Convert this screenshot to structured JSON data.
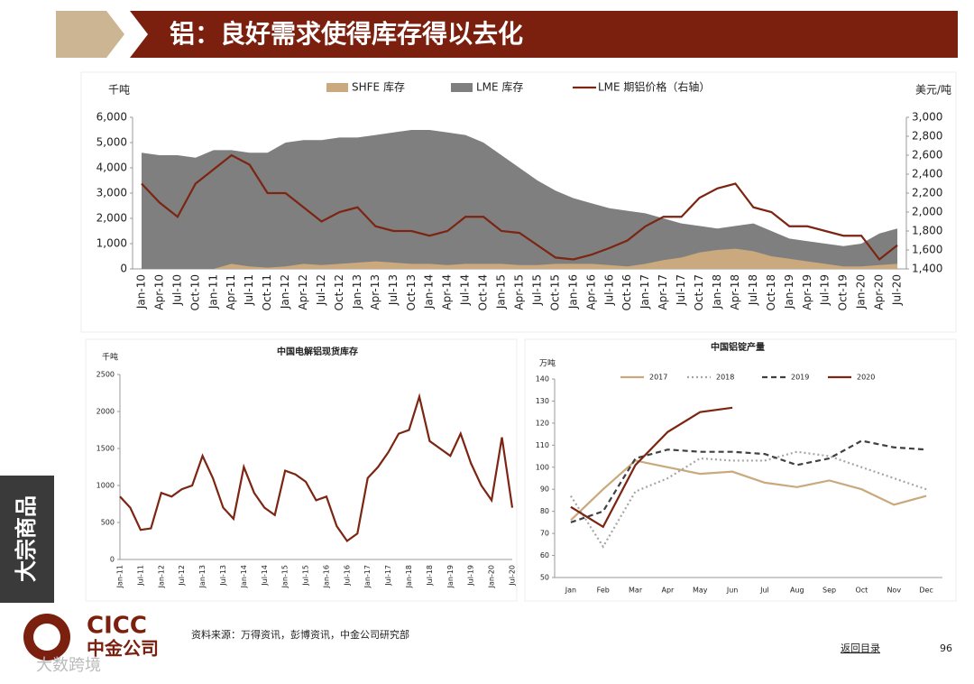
{
  "header": {
    "title": "铝：良好需求使得库存得以去化"
  },
  "sidebar": {
    "label": "大宗商品"
  },
  "logo": {
    "en": "CICC",
    "cn": "中金公司"
  },
  "footer": {
    "source": "资料来源：万得资讯，彭博资讯，中金公司研究部",
    "link": "返回目录",
    "page": "96",
    "watermark": "大数跨境"
  },
  "chart_data": [
    {
      "type": "area",
      "y_label": "千吨",
      "y2_label": "美元/吨",
      "categories": [
        "Jan-10",
        "Apr-10",
        "Jul-10",
        "Oct-10",
        "Jan-11",
        "Apr-11",
        "Jul-11",
        "Oct-11",
        "Jan-12",
        "Apr-12",
        "Jul-12",
        "Oct-12",
        "Jan-13",
        "Apr-13",
        "Jul-13",
        "Oct-13",
        "Jan-14",
        "Apr-14",
        "Jul-14",
        "Oct-14",
        "Jan-15",
        "Apr-15",
        "Jul-15",
        "Oct-15",
        "Jan-16",
        "Apr-16",
        "Jul-16",
        "Oct-16",
        "Jan-17",
        "Apr-17",
        "Jul-17",
        "Oct-17",
        "Jan-18",
        "Apr-18",
        "Jul-18",
        "Oct-18",
        "Jan-19",
        "Apr-19",
        "Jul-19",
        "Oct-19",
        "Jan-20",
        "Apr-20",
        "Jul-20"
      ],
      "series": [
        {
          "name": "SHFE 库存",
          "type": "area",
          "color": "#c9a97d",
          "values": [
            0,
            0,
            0,
            0,
            0,
            200,
            100,
            50,
            100,
            200,
            150,
            200,
            250,
            300,
            250,
            200,
            200,
            150,
            200,
            200,
            200,
            150,
            150,
            200,
            200,
            200,
            150,
            100,
            200,
            350,
            450,
            650,
            750,
            800,
            700,
            500,
            400,
            300,
            200,
            100,
            100,
            150,
            200
          ]
        },
        {
          "name": "LME 库存",
          "type": "area",
          "color": "#7f7f7f",
          "values": [
            4600,
            4500,
            4500,
            4400,
            4700,
            4700,
            4600,
            4600,
            5000,
            5100,
            5100,
            5200,
            5200,
            5300,
            5400,
            5500,
            5500,
            5400,
            5300,
            5000,
            4500,
            4000,
            3500,
            3100,
            2800,
            2600,
            2400,
            2300,
            2200,
            2000,
            1800,
            1700,
            1600,
            1700,
            1800,
            1500,
            1200,
            1100,
            1000,
            900,
            1000,
            1400,
            1600
          ]
        },
        {
          "name": "LME 期铝价格（右轴）",
          "type": "line",
          "axis": "y2",
          "color": "#7b2512",
          "values": [
            2300,
            2100,
            1950,
            2300,
            2450,
            2600,
            2500,
            2200,
            2200,
            2050,
            1900,
            2000,
            2050,
            1850,
            1800,
            1800,
            1750,
            1800,
            1950,
            1950,
            1800,
            1780,
            1650,
            1520,
            1500,
            1550,
            1620,
            1700,
            1850,
            1950,
            1950,
            2150,
            2250,
            2300,
            2050,
            2000,
            1850,
            1850,
            1800,
            1750,
            1750,
            1500,
            1650
          ]
        }
      ],
      "ylim": [
        0,
        6000
      ],
      "yticks": [
        0,
        {
          "value": 1000,
          "label": "1,000"
        },
        {
          "value": 2000,
          "label": "2,000"
        },
        {
          "value": 3000,
          "label": "3,000"
        },
        {
          "value": 4000,
          "label": "4,000"
        },
        {
          "value": 5000,
          "label": "5,000"
        },
        {
          "value": 6000,
          "label": "6,000"
        }
      ],
      "y2lim": [
        1400,
        3000
      ],
      "y2ticks": [
        {
          "value": 1400,
          "label": "1,400"
        },
        {
          "value": 1600,
          "label": "1,600"
        },
        {
          "value": 1800,
          "label": "1,800"
        },
        {
          "value": 2000,
          "label": "2,000"
        },
        {
          "value": 2200,
          "label": "2,200"
        },
        {
          "value": 2400,
          "label": "2,400"
        },
        {
          "value": 2600,
          "label": "2,600"
        },
        {
          "value": 2800,
          "label": "2,800"
        },
        {
          "value": 3000,
          "label": "3,000"
        }
      ]
    },
    {
      "type": "line",
      "title": "中国电解铝现货库存",
      "y_label": "千吨",
      "categories": [
        "Jan-11",
        null,
        "Jul-11",
        null,
        "Jan-12",
        null,
        "Jul-12",
        null,
        "Jan-13",
        null,
        "Jul-13",
        null,
        "Jan-14",
        null,
        "Jul-14",
        null,
        "Jan-15",
        null,
        "Jul-15",
        null,
        "Jan-16",
        null,
        "Jul-16",
        null,
        "Jan-17",
        null,
        "Jul-17",
        null,
        "Jan-18",
        null,
        "Jul-18",
        null,
        "Jan-19",
        null,
        "Jul-19",
        null,
        "Jan-20",
        null,
        "Jul-20"
      ],
      "series": [
        {
          "color": "#7b2512",
          "values": [
            850,
            700,
            400,
            420,
            900,
            850,
            950,
            1000,
            1400,
            1100,
            700,
            550,
            1250,
            900,
            700,
            600,
            1200,
            1150,
            1050,
            800,
            850,
            450,
            250,
            350,
            1100,
            1250,
            1450,
            1700,
            1750,
            2200,
            1600,
            1500,
            1400,
            1700,
            1300,
            1000,
            800,
            1650,
            700
          ]
        }
      ],
      "ylim": [
        0,
        2500
      ],
      "yticks": [
        0,
        500,
        1000,
        1500,
        2000,
        2500
      ]
    },
    {
      "type": "line",
      "title": "中国铝锭产量",
      "y_label": "万吨",
      "categories": [
        "Jan",
        "Feb",
        "Mar",
        "Apr",
        "May",
        "Jun",
        "Jul",
        "Aug",
        "Sep",
        "Oct",
        "Nov",
        "Dec"
      ],
      "series": [
        {
          "name": "2017",
          "color": "#c9a97d",
          "dash": "solid",
          "values": [
            76,
            90,
            103,
            100,
            97,
            98,
            93,
            91,
            94,
            90,
            83,
            87
          ]
        },
        {
          "name": "2018",
          "color": "#a6a6a6",
          "dash": "dotted",
          "values": [
            87,
            64,
            89,
            95,
            104,
            103,
            103,
            107,
            105,
            100,
            95,
            90
          ]
        },
        {
          "name": "2019",
          "color": "#404040",
          "dash": "dashed",
          "values": [
            75,
            80,
            104,
            108,
            107,
            107,
            106,
            101,
            104,
            112,
            109,
            108
          ]
        },
        {
          "name": "2020",
          "color": "#7b2512",
          "dash": "solid",
          "values": [
            82,
            73,
            101,
            116,
            125,
            127,
            null,
            null,
            null,
            null,
            null,
            null
          ]
        }
      ],
      "ylim": [
        50,
        140
      ],
      "yticks": [
        50,
        60,
        70,
        80,
        90,
        100,
        110,
        120,
        130,
        140
      ]
    }
  ]
}
